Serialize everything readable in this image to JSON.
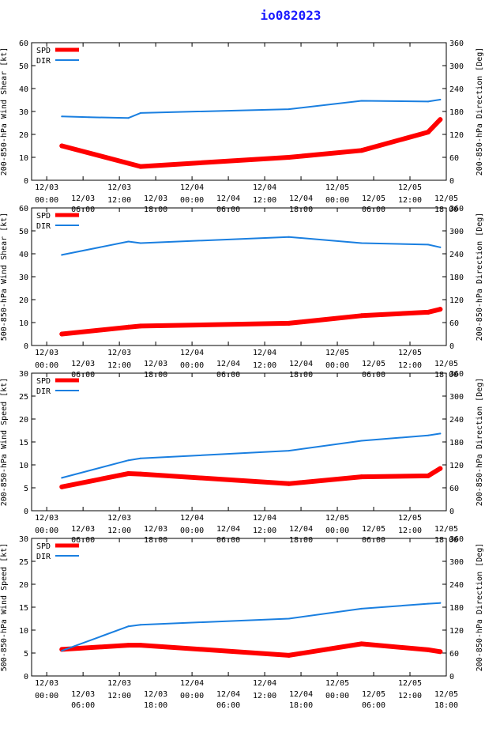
{
  "title": "io082023",
  "colors": {
    "spd": "#ff0000",
    "dir": "#1a7fe0",
    "title": "#1a1aff",
    "axis": "#000000"
  },
  "legend": {
    "spd": "SPD",
    "dir": "DIR"
  },
  "x_labels": [
    [
      "12/03",
      "00:00"
    ],
    [
      "12/03",
      "06:00"
    ],
    [
      "12/03",
      "12:00"
    ],
    [
      "12/03",
      "18:00"
    ],
    [
      "12/04",
      "00:00"
    ],
    [
      "12/04",
      "06:00"
    ],
    [
      "12/04",
      "12:00"
    ],
    [
      "12/04",
      "18:00"
    ],
    [
      "12/05",
      "00:00"
    ],
    [
      "12/05",
      "06:00"
    ],
    [
      "12/05",
      "12:00"
    ],
    [
      "12/05",
      "18:00"
    ]
  ],
  "chart_data": [
    {
      "type": "line",
      "ylabel_left": "200-850-hPa Wind Shear [kt]",
      "ylabel_right": "200-850-hPa Direction [Deg]",
      "ylim_left": [
        0,
        60
      ],
      "yticks_left": [
        0,
        10,
        20,
        30,
        40,
        50,
        60
      ],
      "ylim_right": [
        0,
        360
      ],
      "yticks_right": [
        0,
        60,
        120,
        180,
        240,
        300,
        360
      ],
      "x_hours": [
        0,
        6,
        12,
        18,
        24,
        30,
        36,
        42,
        48,
        54,
        60,
        66
      ],
      "series": [
        {
          "name": "SPD",
          "axis": "left",
          "x": [
            2.5,
            15.5,
            40,
            52,
            63,
            65
          ],
          "values": [
            15,
            6,
            10,
            13,
            21,
            26.5
          ]
        },
        {
          "name": "DIR",
          "axis": "right",
          "x": [
            2.5,
            7,
            13.5,
            15.5,
            40,
            52,
            63,
            65
          ],
          "values": [
            167,
            165,
            163,
            176,
            186,
            208,
            206,
            211
          ]
        }
      ]
    },
    {
      "type": "line",
      "ylabel_left": "500-850-hPa Wind Shear [kt]",
      "ylabel_right": "200-850-hPa Direction [Deg]",
      "ylim_left": [
        0,
        60
      ],
      "yticks_left": [
        0,
        10,
        20,
        30,
        40,
        50,
        60
      ],
      "ylim_right": [
        0,
        360
      ],
      "yticks_right": [
        0,
        60,
        120,
        180,
        240,
        300,
        360
      ],
      "x_hours": [
        0,
        6,
        12,
        18,
        24,
        30,
        36,
        42,
        48,
        54,
        60,
        66
      ],
      "series": [
        {
          "name": "SPD",
          "axis": "left",
          "x": [
            2.5,
            13.5,
            15.5,
            40,
            52,
            63,
            65
          ],
          "values": [
            5,
            8,
            8.5,
            9.7,
            13,
            14.5,
            15.8
          ]
        },
        {
          "name": "DIR",
          "axis": "right",
          "x": [
            2.5,
            13.5,
            15.5,
            40,
            52,
            63,
            65
          ],
          "values": [
            237,
            272,
            268,
            284,
            268,
            264,
            257
          ]
        }
      ]
    },
    {
      "type": "line",
      "ylabel_left": "200-850-hPa Wind Speed [kt]",
      "ylabel_right": "200-850-hPa Direction [Deg]",
      "ylim_left": [
        0,
        30
      ],
      "yticks_left": [
        0,
        5,
        10,
        15,
        20,
        25,
        30
      ],
      "ylim_right": [
        0,
        360
      ],
      "yticks_right": [
        0,
        60,
        120,
        180,
        240,
        300,
        360
      ],
      "x_hours": [
        0,
        6,
        12,
        18,
        24,
        30,
        36,
        42,
        48,
        54,
        60,
        66
      ],
      "series": [
        {
          "name": "SPD",
          "axis": "left",
          "x": [
            2.5,
            13.5,
            15.5,
            40,
            52,
            63,
            65
          ],
          "values": [
            5.2,
            8.1,
            8.0,
            5.9,
            7.4,
            7.6,
            9.2
          ]
        },
        {
          "name": "DIR",
          "axis": "right",
          "x": [
            2.5,
            13.5,
            15.5,
            40,
            52,
            63,
            65
          ],
          "values": [
            86,
            132,
            137,
            157,
            183,
            197,
            202
          ]
        }
      ]
    },
    {
      "type": "line",
      "ylabel_left": "500-850-hPa Wind Speed [kt]",
      "ylabel_right": "200-850-hPa Direction [Deg]",
      "ylim_left": [
        0,
        30
      ],
      "yticks_left": [
        0,
        5,
        10,
        15,
        20,
        25,
        30
      ],
      "ylim_right": [
        0,
        360
      ],
      "yticks_right": [
        0,
        60,
        120,
        180,
        240,
        300,
        360
      ],
      "x_hours": [
        0,
        6,
        12,
        18,
        24,
        30,
        36,
        42,
        48,
        54,
        60,
        66
      ],
      "series": [
        {
          "name": "SPD",
          "axis": "left",
          "x": [
            2.5,
            13.5,
            15.5,
            40,
            52,
            63,
            65
          ],
          "values": [
            5.8,
            6.7,
            6.7,
            4.5,
            7.0,
            5.7,
            5.3
          ]
        },
        {
          "name": "DIR",
          "axis": "right",
          "x": [
            2.5,
            13.5,
            15.5,
            40,
            52,
            63,
            65
          ],
          "values": [
            66,
            130,
            134,
            150,
            176,
            189,
            191
          ]
        }
      ]
    }
  ]
}
